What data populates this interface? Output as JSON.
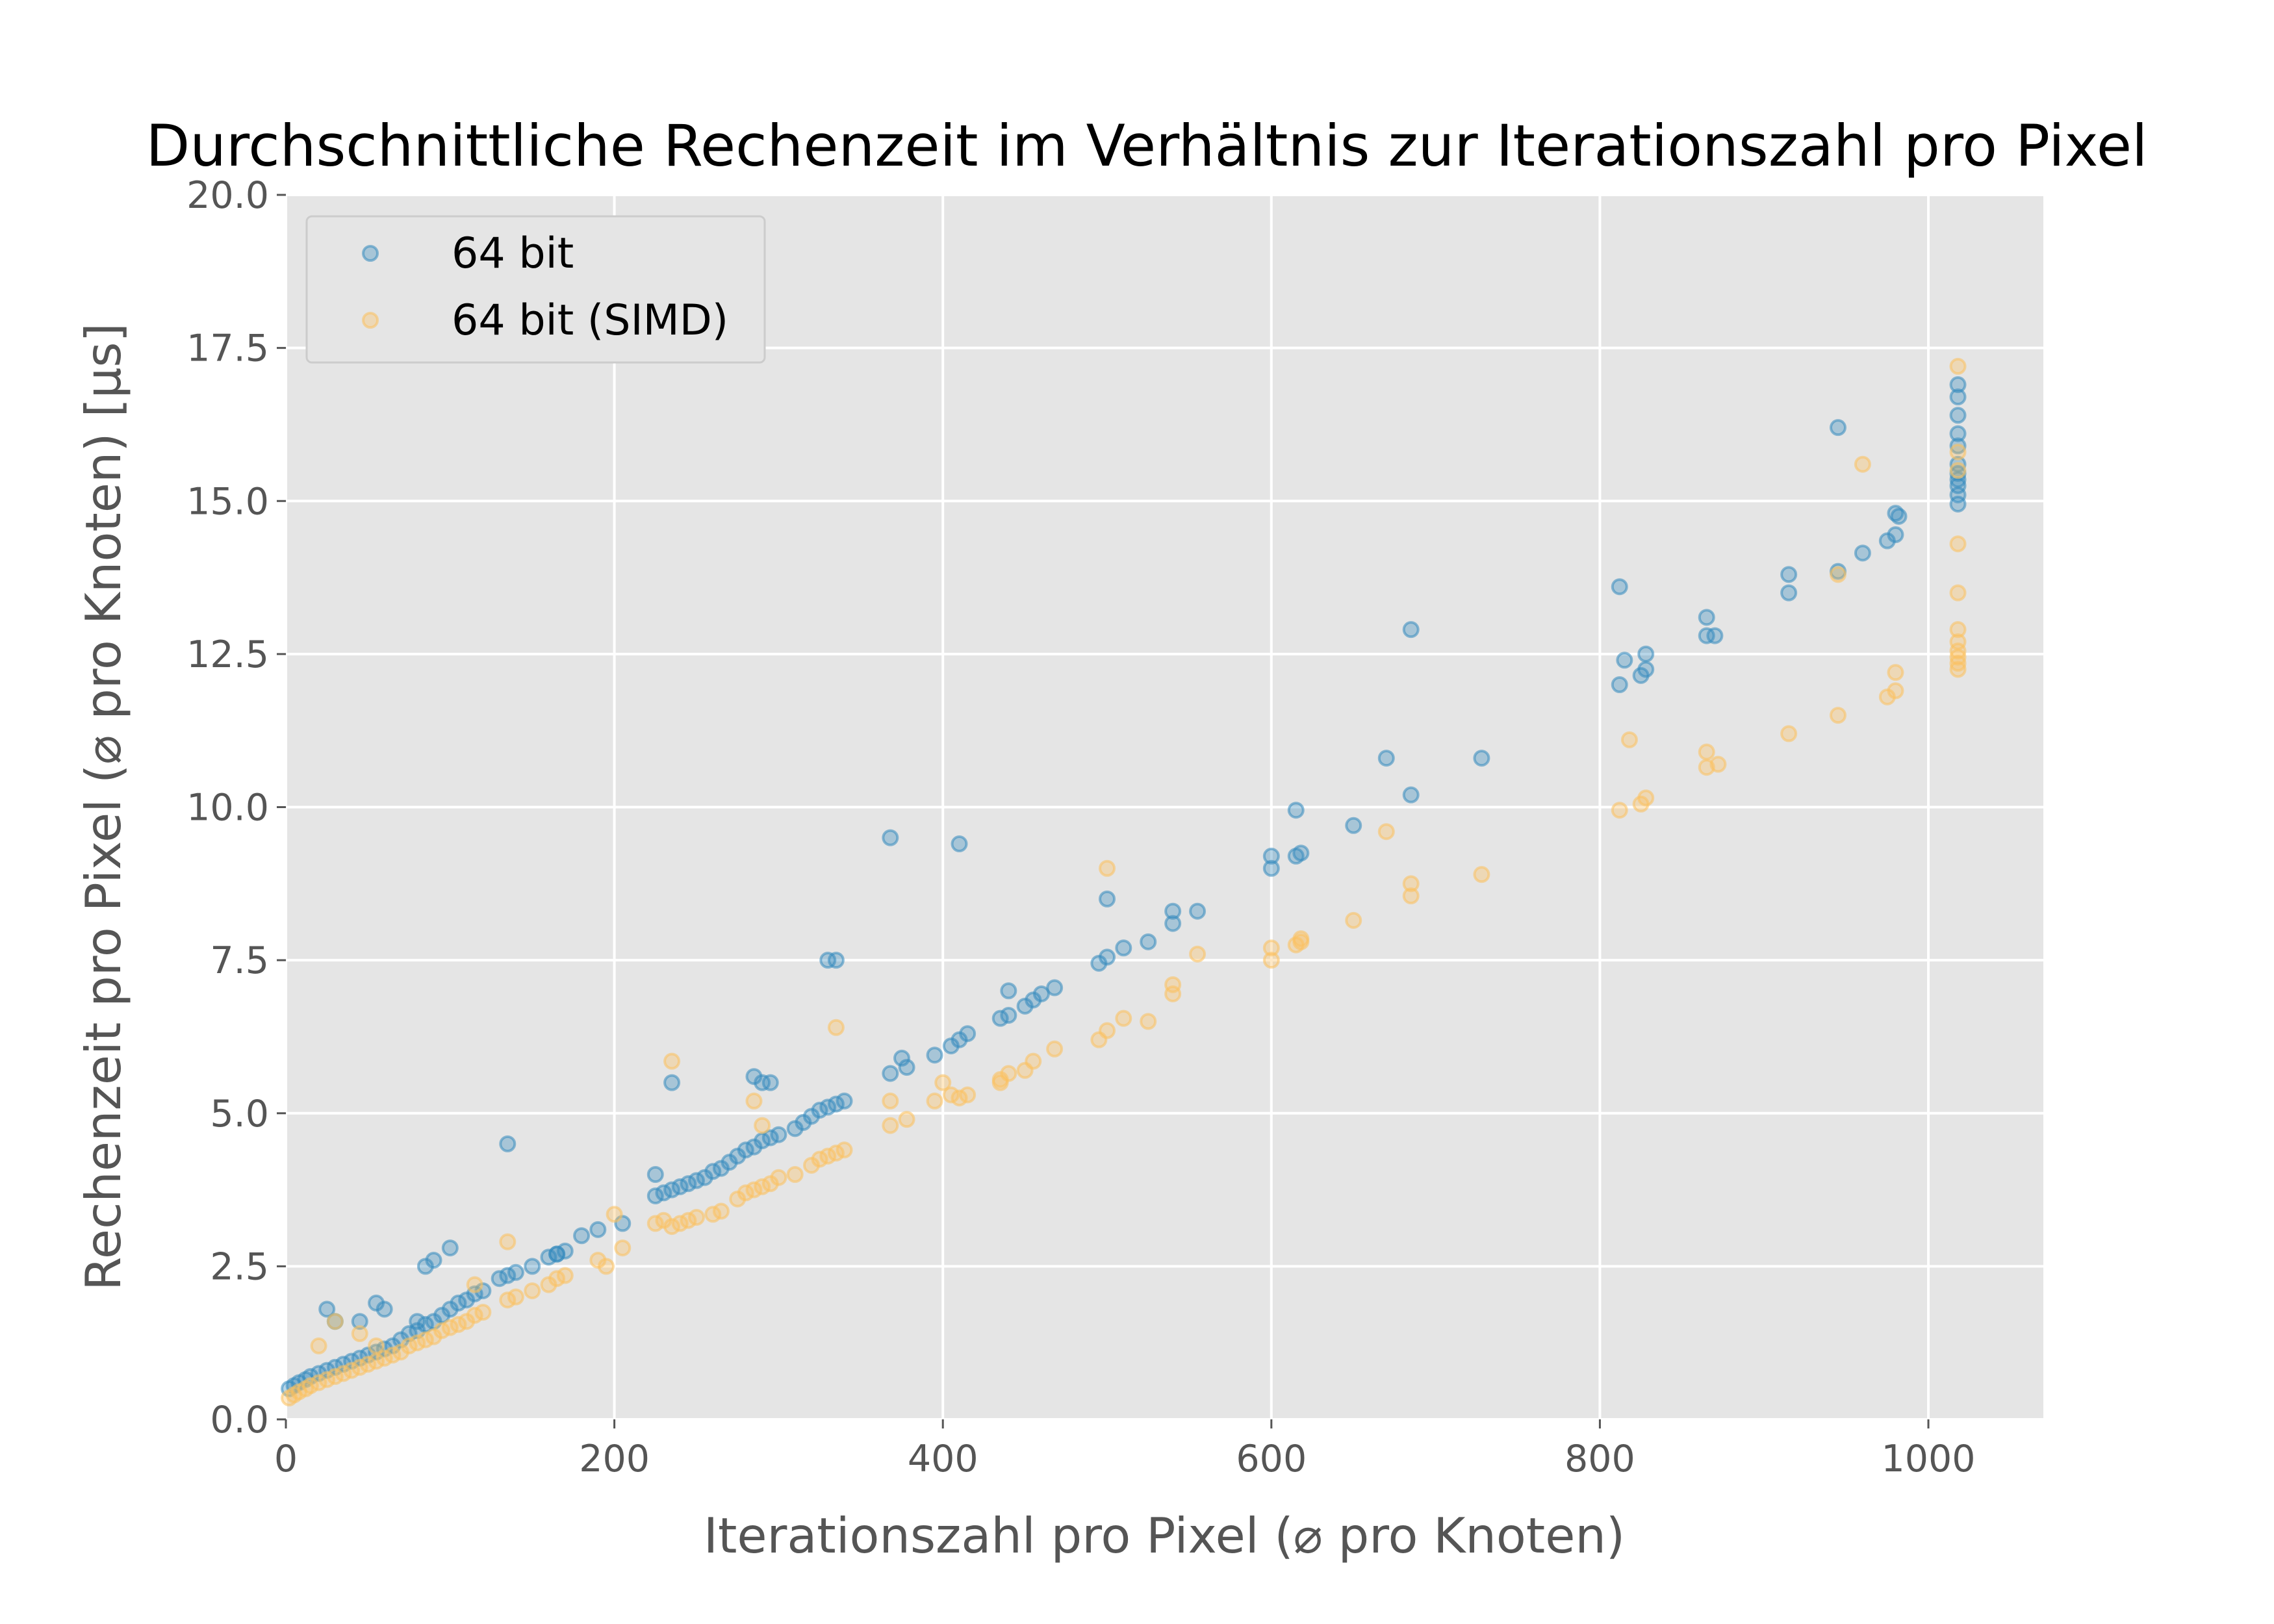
{
  "chart_data": {
    "type": "scatter",
    "title": "Durchschnittliche Rechenzeit im Verhältnis zur Iterationszahl pro Pixel",
    "xlabel": "Iterationszahl pro Pixel (⌀ pro Knoten)",
    "ylabel": "Rechenzeit pro Pixel (⌀ pro Knoten) [µs]",
    "xlim": [
      0,
      1070
    ],
    "ylim": [
      0,
      20
    ],
    "xticks": [
      0,
      200,
      400,
      600,
      800,
      1000
    ],
    "xtick_labels": [
      "0",
      "200",
      "400",
      "600",
      "800",
      "1000"
    ],
    "yticks": [
      0,
      2.5,
      5,
      7.5,
      10,
      12.5,
      15,
      17.5,
      20
    ],
    "ytick_labels": [
      "0.0",
      "2.5",
      "5.0",
      "7.5",
      "10.0",
      "12.5",
      "15.0",
      "17.5",
      "20.0"
    ],
    "grid": true,
    "legend_position": "top-left",
    "series": [
      {
        "name": "64 bit",
        "color": "#348ABD",
        "x": [
          2,
          5,
          8,
          12,
          15,
          20,
          25,
          30,
          35,
          40,
          45,
          50,
          55,
          60,
          65,
          70,
          75,
          80,
          85,
          90,
          95,
          100,
          105,
          110,
          115,
          120,
          130,
          135,
          140,
          150,
          160,
          165,
          170,
          225,
          230,
          235,
          240,
          245,
          250,
          255,
          260,
          265,
          270,
          275,
          280,
          285,
          290,
          295,
          300,
          310,
          315,
          320,
          325,
          330,
          335,
          340,
          368,
          378,
          395,
          405,
          410,
          415,
          435,
          440,
          450,
          455,
          460,
          468,
          495,
          500,
          510,
          525,
          540,
          600,
          615,
          618,
          650,
          685,
          728,
          812,
          825,
          828,
          865,
          915,
          945,
          960,
          975,
          980,
          982,
          1018,
          1018,
          1018,
          1018,
          1018,
          25,
          30,
          45,
          55,
          60,
          80,
          85,
          90,
          100,
          135,
          165,
          180,
          190,
          205,
          225,
          235,
          285,
          290,
          295,
          330,
          335,
          368,
          375,
          410,
          440,
          500,
          540,
          555,
          600,
          615,
          670,
          685,
          812,
          815,
          828,
          865,
          870,
          915,
          945,
          980,
          1018,
          1018,
          1018,
          1018,
          1018,
          1018
        ],
        "y": [
          0.5,
          0.55,
          0.6,
          0.65,
          0.7,
          0.75,
          0.8,
          0.85,
          0.9,
          0.95,
          1.0,
          1.05,
          1.1,
          1.15,
          1.2,
          1.3,
          1.4,
          1.45,
          1.55,
          1.6,
          1.7,
          1.8,
          1.9,
          1.95,
          2.05,
          2.1,
          2.3,
          2.35,
          2.4,
          2.5,
          2.65,
          2.7,
          2.75,
          3.65,
          3.7,
          3.75,
          3.8,
          3.85,
          3.9,
          3.95,
          4.05,
          4.1,
          4.2,
          4.3,
          4.4,
          4.45,
          4.55,
          4.6,
          4.65,
          4.75,
          4.85,
          4.95,
          5.05,
          5.1,
          5.15,
          5.2,
          5.65,
          5.75,
          5.95,
          6.1,
          6.2,
          6.3,
          6.55,
          6.6,
          6.75,
          6.85,
          6.95,
          7.05,
          7.45,
          7.55,
          7.7,
          7.8,
          8.1,
          9.0,
          9.2,
          9.25,
          9.7,
          10.2,
          10.8,
          12.0,
          12.15,
          12.25,
          12.8,
          13.5,
          13.85,
          14.15,
          14.35,
          14.45,
          14.75,
          14.95,
          15.1,
          15.25,
          15.35,
          15.45,
          1.8,
          1.6,
          1.6,
          1.9,
          1.8,
          1.6,
          2.5,
          2.6,
          2.8,
          4.5,
          2.7,
          3.0,
          3.1,
          3.2,
          4.0,
          5.5,
          5.6,
          5.5,
          5.5,
          7.5,
          7.5,
          9.5,
          5.9,
          9.4,
          7.0,
          8.5,
          8.3,
          8.3,
          9.2,
          9.95,
          10.8,
          12.9,
          13.6,
          12.4,
          12.5,
          13.1,
          12.8,
          13.8,
          16.2,
          14.8,
          15.6,
          16.1,
          16.4,
          16.7,
          16.9,
          15.9
        ]
      },
      {
        "name": "64 bit (SIMD)",
        "color": "#FBC15E",
        "x": [
          2,
          5,
          8,
          12,
          15,
          20,
          25,
          30,
          35,
          40,
          45,
          50,
          55,
          60,
          65,
          70,
          75,
          80,
          85,
          90,
          95,
          100,
          105,
          110,
          115,
          120,
          135,
          140,
          150,
          160,
          165,
          170,
          190,
          205,
          225,
          230,
          235,
          240,
          245,
          250,
          260,
          265,
          275,
          280,
          285,
          290,
          295,
          300,
          310,
          320,
          325,
          330,
          335,
          340,
          368,
          378,
          395,
          405,
          410,
          415,
          435,
          440,
          450,
          455,
          468,
          495,
          500,
          510,
          525,
          540,
          600,
          615,
          618,
          650,
          685,
          728,
          812,
          825,
          828,
          865,
          915,
          945,
          975,
          980,
          1018,
          1018,
          1018,
          1018,
          1018,
          20,
          30,
          45,
          55,
          115,
          135,
          195,
          200,
          235,
          285,
          290,
          335,
          368,
          400,
          435,
          500,
          540,
          555,
          600,
          618,
          670,
          685,
          818,
          865,
          872,
          945,
          960,
          980,
          1018,
          1018,
          1018,
          1018,
          1018,
          1018
        ],
        "y": [
          0.35,
          0.4,
          0.45,
          0.5,
          0.55,
          0.6,
          0.65,
          0.7,
          0.75,
          0.8,
          0.85,
          0.9,
          0.95,
          1.0,
          1.05,
          1.1,
          1.2,
          1.25,
          1.3,
          1.35,
          1.45,
          1.5,
          1.55,
          1.6,
          1.7,
          1.75,
          1.95,
          2.0,
          2.1,
          2.2,
          2.3,
          2.35,
          2.6,
          2.8,
          3.2,
          3.25,
          3.15,
          3.2,
          3.25,
          3.3,
          3.35,
          3.4,
          3.6,
          3.7,
          3.75,
          3.8,
          3.85,
          3.95,
          4.0,
          4.15,
          4.25,
          4.3,
          4.35,
          4.4,
          4.8,
          4.9,
          5.2,
          5.3,
          5.25,
          5.3,
          5.55,
          5.65,
          5.7,
          5.85,
          6.05,
          6.2,
          6.35,
          6.55,
          6.5,
          6.95,
          7.5,
          7.75,
          7.85,
          8.15,
          8.55,
          8.9,
          9.95,
          10.05,
          10.15,
          10.65,
          11.2,
          11.5,
          11.8,
          11.9,
          12.25,
          12.35,
          12.45,
          12.55,
          12.7,
          1.2,
          1.6,
          1.4,
          1.2,
          2.2,
          2.9,
          2.5,
          3.35,
          5.85,
          5.2,
          4.8,
          6.4,
          5.2,
          5.5,
          5.5,
          9.0,
          7.1,
          7.6,
          7.7,
          7.8,
          9.6,
          8.75,
          11.1,
          10.9,
          10.7,
          13.8,
          15.6,
          12.2,
          17.2,
          14.3,
          13.5,
          12.9,
          15.5,
          15.8
        ]
      }
    ]
  }
}
